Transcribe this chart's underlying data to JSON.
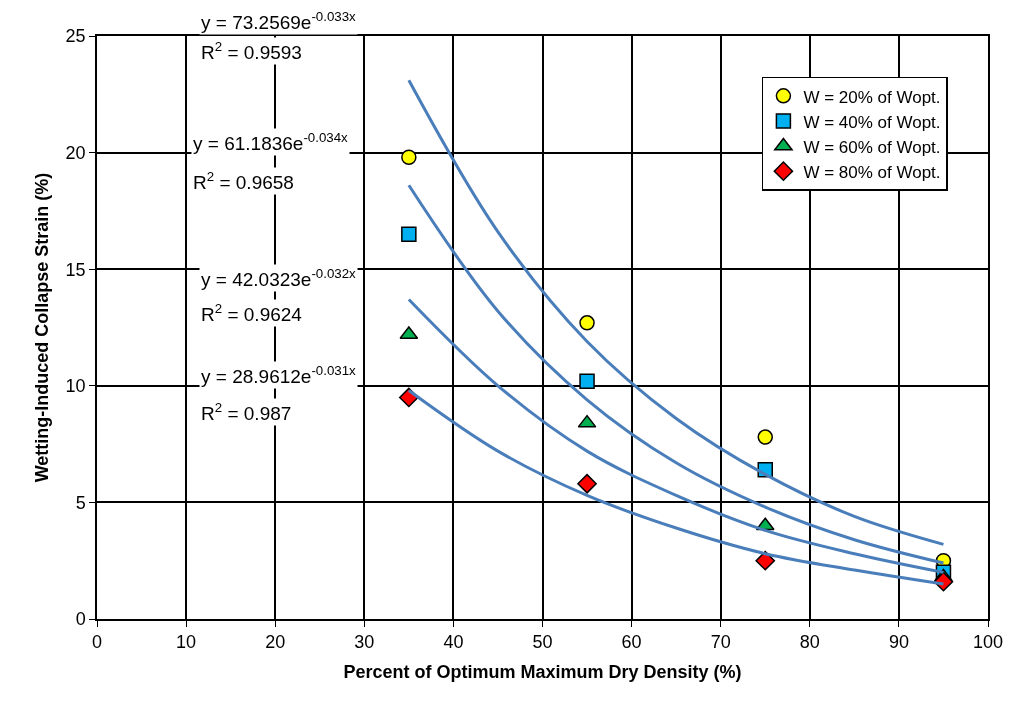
{
  "chart_data": {
    "type": "scatter",
    "xlabel": "Percent of Optimum Maximum Dry Density (%)",
    "ylabel": "Wetting-Induced Collapse Strain (%)",
    "x": [
      35,
      55,
      75,
      95
    ],
    "series": [
      {
        "name": "W = 20% of Wopt.",
        "color": "#ffff00",
        "marker": "circle",
        "values": [
          19.8,
          12.7,
          7.8,
          2.5
        ]
      },
      {
        "name": "W = 40% of Wopt.",
        "color": "#00b0f0",
        "marker": "square",
        "values": [
          16.5,
          10.2,
          6.4,
          2.0
        ]
      },
      {
        "name": "W = 60% of Wopt.",
        "color": "#00b050",
        "marker": "triangle",
        "values": [
          12.2,
          8.4,
          4.0,
          1.8
        ]
      },
      {
        "name": "W = 80% of Wopt.",
        "color": "#ff0000",
        "marker": "diamond",
        "values": [
          9.5,
          5.8,
          2.5,
          1.6
        ]
      },
      {
        "type": "line",
        "color": "#4a7ebb",
        "x": [
          35,
          45,
          55,
          65,
          75,
          85,
          95
        ],
        "values": [
          23.1,
          16.6,
          11.9,
          8.6,
          6.2,
          4.4,
          3.2
        ]
      },
      {
        "type": "line",
        "color": "#4a7ebb",
        "x": [
          35,
          45,
          55,
          65,
          75,
          85,
          95
        ],
        "values": [
          18.6,
          13.2,
          9.4,
          6.7,
          4.8,
          3.4,
          2.4
        ]
      },
      {
        "type": "line",
        "color": "#4a7ebb",
        "x": [
          35,
          45,
          55,
          65,
          75,
          85,
          95
        ],
        "values": [
          13.7,
          10.0,
          7.2,
          5.3,
          3.8,
          2.8,
          2.0
        ]
      },
      {
        "type": "line",
        "color": "#4a7ebb",
        "x": [
          35,
          45,
          55,
          65,
          75,
          85,
          95
        ],
        "values": [
          9.8,
          7.2,
          5.3,
          3.9,
          2.8,
          2.1,
          1.5
        ]
      }
    ],
    "annotations": [
      "y = 73.2569e$^{-0.033x}$",
      "R$^{2}$ = 0.9593",
      "y = 61.1836e$^{-0.034x}$",
      "R$^{2}$ = 0.9658",
      "y = 42.0323e$^{-0.032x}$",
      "R$^{2}$ = 0.9624",
      "y = 28.9612e$^{-0.031x}$",
      "R$^{2}$ = 0.987"
    ],
    "xlim": [
      0,
      100
    ],
    "xticks": [
      0,
      10,
      20,
      30,
      40,
      50,
      60,
      70,
      80,
      90,
      100
    ],
    "ylim": [
      0,
      25
    ],
    "yticks": [
      0,
      5,
      10,
      15,
      20,
      25
    ],
    "grid": true,
    "legend": "top right"
  }
}
